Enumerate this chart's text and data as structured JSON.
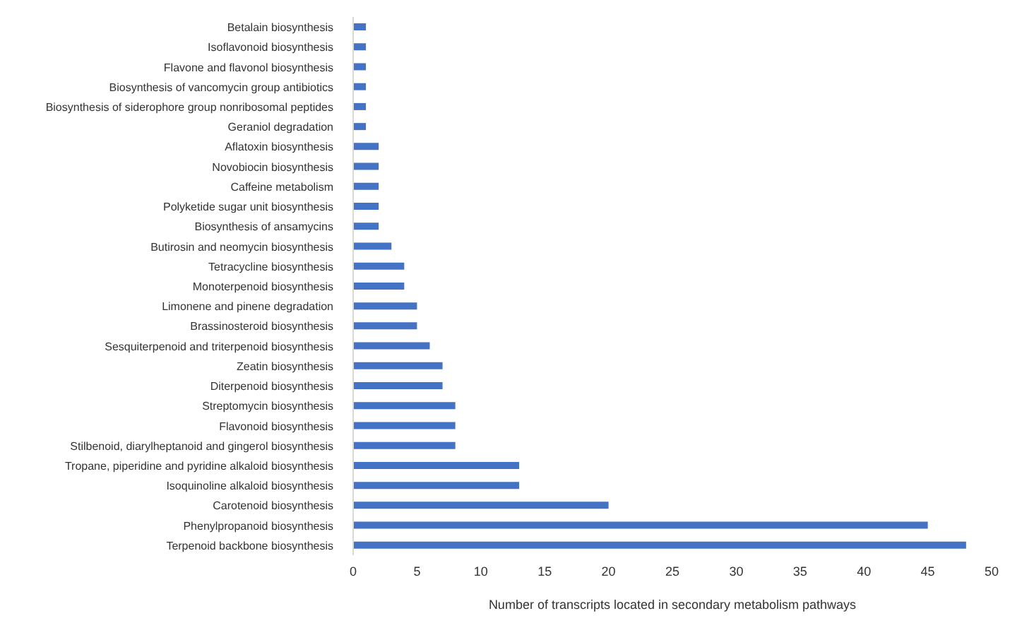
{
  "chart_data": {
    "type": "bar",
    "orientation": "horizontal",
    "xlabel": "Number of transcripts located in secondary metabolism pathways",
    "categories": [
      "Betalain biosynthesis",
      "Isoflavonoid biosynthesis",
      "Flavone and flavonol biosynthesis",
      "Biosynthesis of vancomycin group antibiotics",
      "Biosynthesis of siderophore group nonribosomal peptides",
      "Geraniol degradation",
      "Aflatoxin biosynthesis",
      "Novobiocin biosynthesis",
      "Caffeine metabolism",
      "Polyketide sugar unit biosynthesis",
      "Biosynthesis of ansamycins",
      "Butirosin and neomycin biosynthesis",
      "Tetracycline biosynthesis",
      "Monoterpenoid biosynthesis",
      "Limonene and pinene degradation",
      "Brassinosteroid biosynthesis",
      "Sesquiterpenoid and triterpenoid biosynthesis",
      "Zeatin biosynthesis",
      "Diterpenoid biosynthesis",
      "Streptomycin biosynthesis",
      "Flavonoid biosynthesis",
      "Stilbenoid, diarylheptanoid and gingerol biosynthesis",
      "Tropane, piperidine and pyridine alkaloid biosynthesis",
      "Isoquinoline alkaloid biosynthesis",
      "Carotenoid biosynthesis",
      "Phenylpropanoid biosynthesis",
      "Terpenoid backbone biosynthesis"
    ],
    "values": [
      1,
      1,
      1,
      1,
      1,
      1,
      2,
      2,
      2,
      2,
      2,
      3,
      4,
      4,
      5,
      5,
      6,
      7,
      7,
      8,
      8,
      8,
      13,
      13,
      20,
      45,
      48
    ],
    "color": "#4472c4",
    "xlim": [
      0,
      50
    ],
    "xticks": [
      0,
      5,
      10,
      15,
      20,
      25,
      30,
      35,
      40,
      45,
      50
    ],
    "grid": false,
    "legend": false
  }
}
